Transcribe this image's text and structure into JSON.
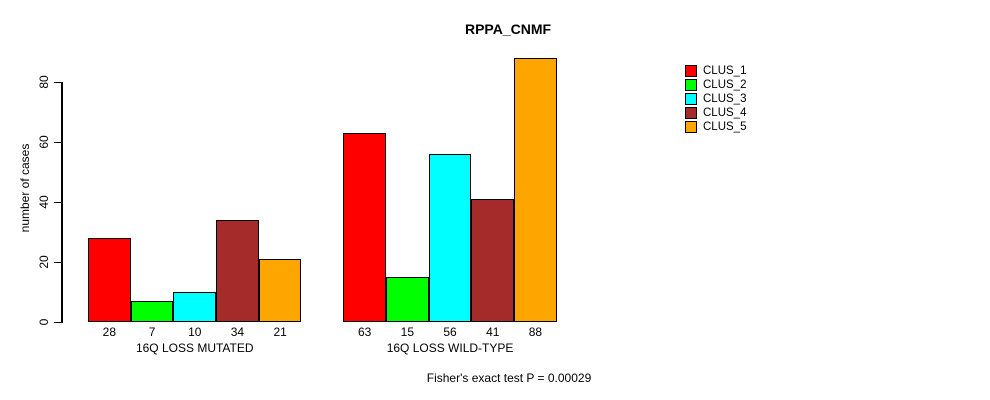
{
  "chart": {
    "title": "RPPA_CNMF",
    "y_axis_label": "number of cases",
    "footnote": "Fisher's exact test P = 0.00029"
  },
  "chart_data": {
    "type": "bar",
    "title": "RPPA_CNMF",
    "xlabel": "",
    "ylabel": "number of cases",
    "categories": [
      "16Q LOSS MUTATED",
      "16Q LOSS WILD-TYPE"
    ],
    "series": [
      {
        "name": "CLUS_1",
        "color": "#FF0000",
        "values": [
          28,
          63
        ]
      },
      {
        "name": "CLUS_2",
        "color": "#00FF00",
        "values": [
          7,
          15
        ]
      },
      {
        "name": "CLUS_3",
        "color": "#00FFFF",
        "values": [
          10,
          56
        ]
      },
      {
        "name": "CLUS_4",
        "color": "#A52A2A",
        "values": [
          34,
          41
        ]
      },
      {
        "name": "CLUS_5",
        "color": "#FFA500",
        "values": [
          21,
          88
        ]
      }
    ],
    "y_ticks": [
      0,
      20,
      40,
      60,
      80
    ],
    "ylim": [
      0,
      88
    ],
    "bar_value_labels": true,
    "legend_position": "right",
    "legend_entries": [
      "CLUS_1",
      "CLUS_2",
      "CLUS_3",
      "CLUS_4",
      "CLUS_5"
    ],
    "annotation": "Fisher's exact test P = 0.00029",
    "grid": false
  }
}
